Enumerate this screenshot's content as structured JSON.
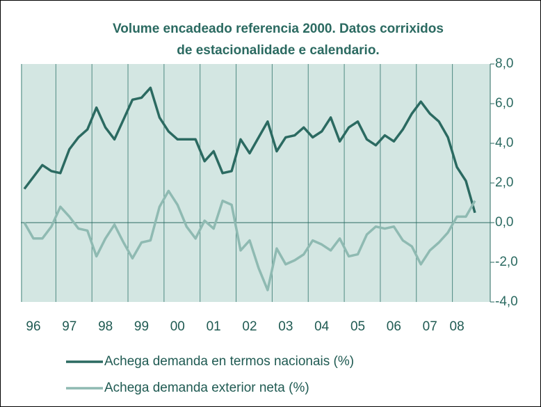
{
  "chart_data": {
    "type": "line",
    "title": [
      "Volume encadeado referencia 2000. Datos corrixidos",
      "de estacionalidade e calendario."
    ],
    "categories": [
      null,
      "96",
      null,
      null,
      null,
      "97",
      null,
      null,
      null,
      "98",
      null,
      null,
      null,
      "99",
      null,
      null,
      null,
      "00",
      null,
      null,
      null,
      "01",
      null,
      null,
      null,
      "02",
      null,
      null,
      null,
      "03",
      null,
      null,
      null,
      "04",
      null,
      null,
      null,
      "05",
      null,
      null,
      null,
      "06",
      null,
      null,
      null,
      "07",
      null,
      null,
      "08",
      null,
      null
    ],
    "series": [
      {
        "name": "Achega demanda en termos nacionais (%)",
        "color": "#2b6a61",
        "values": [
          1.7,
          2.3,
          2.9,
          2.6,
          2.5,
          3.7,
          4.3,
          4.7,
          5.8,
          4.8,
          4.2,
          5.2,
          6.2,
          6.3,
          6.8,
          5.3,
          4.6,
          4.2,
          4.2,
          4.2,
          3.1,
          3.6,
          2.5,
          2.6,
          4.2,
          3.5,
          4.3,
          5.1,
          3.6,
          4.3,
          4.4,
          4.8,
          4.3,
          4.6,
          5.3,
          4.1,
          4.8,
          5.1,
          4.2,
          3.9,
          4.4,
          4.1,
          4.7,
          5.5,
          6.1,
          5.5,
          5.1,
          4.3,
          2.8,
          2.1,
          0.5
        ]
      },
      {
        "name": "Achega demanda exterior neta (%)",
        "color": "#8fbab2",
        "values": [
          0.0,
          -0.8,
          -0.8,
          -0.2,
          0.8,
          0.3,
          -0.3,
          -0.4,
          -1.7,
          -0.8,
          -0.1,
          -1.0,
          -1.8,
          -1.0,
          -0.9,
          0.8,
          1.6,
          0.9,
          -0.2,
          -0.8,
          0.1,
          -0.3,
          1.1,
          0.9,
          -1.4,
          -0.9,
          -2.3,
          -3.4,
          -1.3,
          -2.1,
          -1.9,
          -1.6,
          -0.9,
          -1.1,
          -1.4,
          -0.8,
          -1.7,
          -1.6,
          -0.6,
          -0.2,
          -0.3,
          -0.2,
          -0.9,
          -1.2,
          -2.1,
          -1.4,
          -1.0,
          -0.5,
          0.3,
          0.3,
          1.1
        ]
      }
    ],
    "ylim": [
      -4,
      8
    ],
    "yticks": [
      {
        "value": -4,
        "label": "-4,0"
      },
      {
        "value": -2,
        "label": "-2,0"
      },
      {
        "value": 0,
        "label": "0,0"
      },
      {
        "value": 2,
        "label": "2,0"
      },
      {
        "value": 4,
        "label": "4,0"
      },
      {
        "value": 6,
        "label": "6,0"
      },
      {
        "value": 8,
        "label": "8,0"
      }
    ],
    "grid": true
  }
}
